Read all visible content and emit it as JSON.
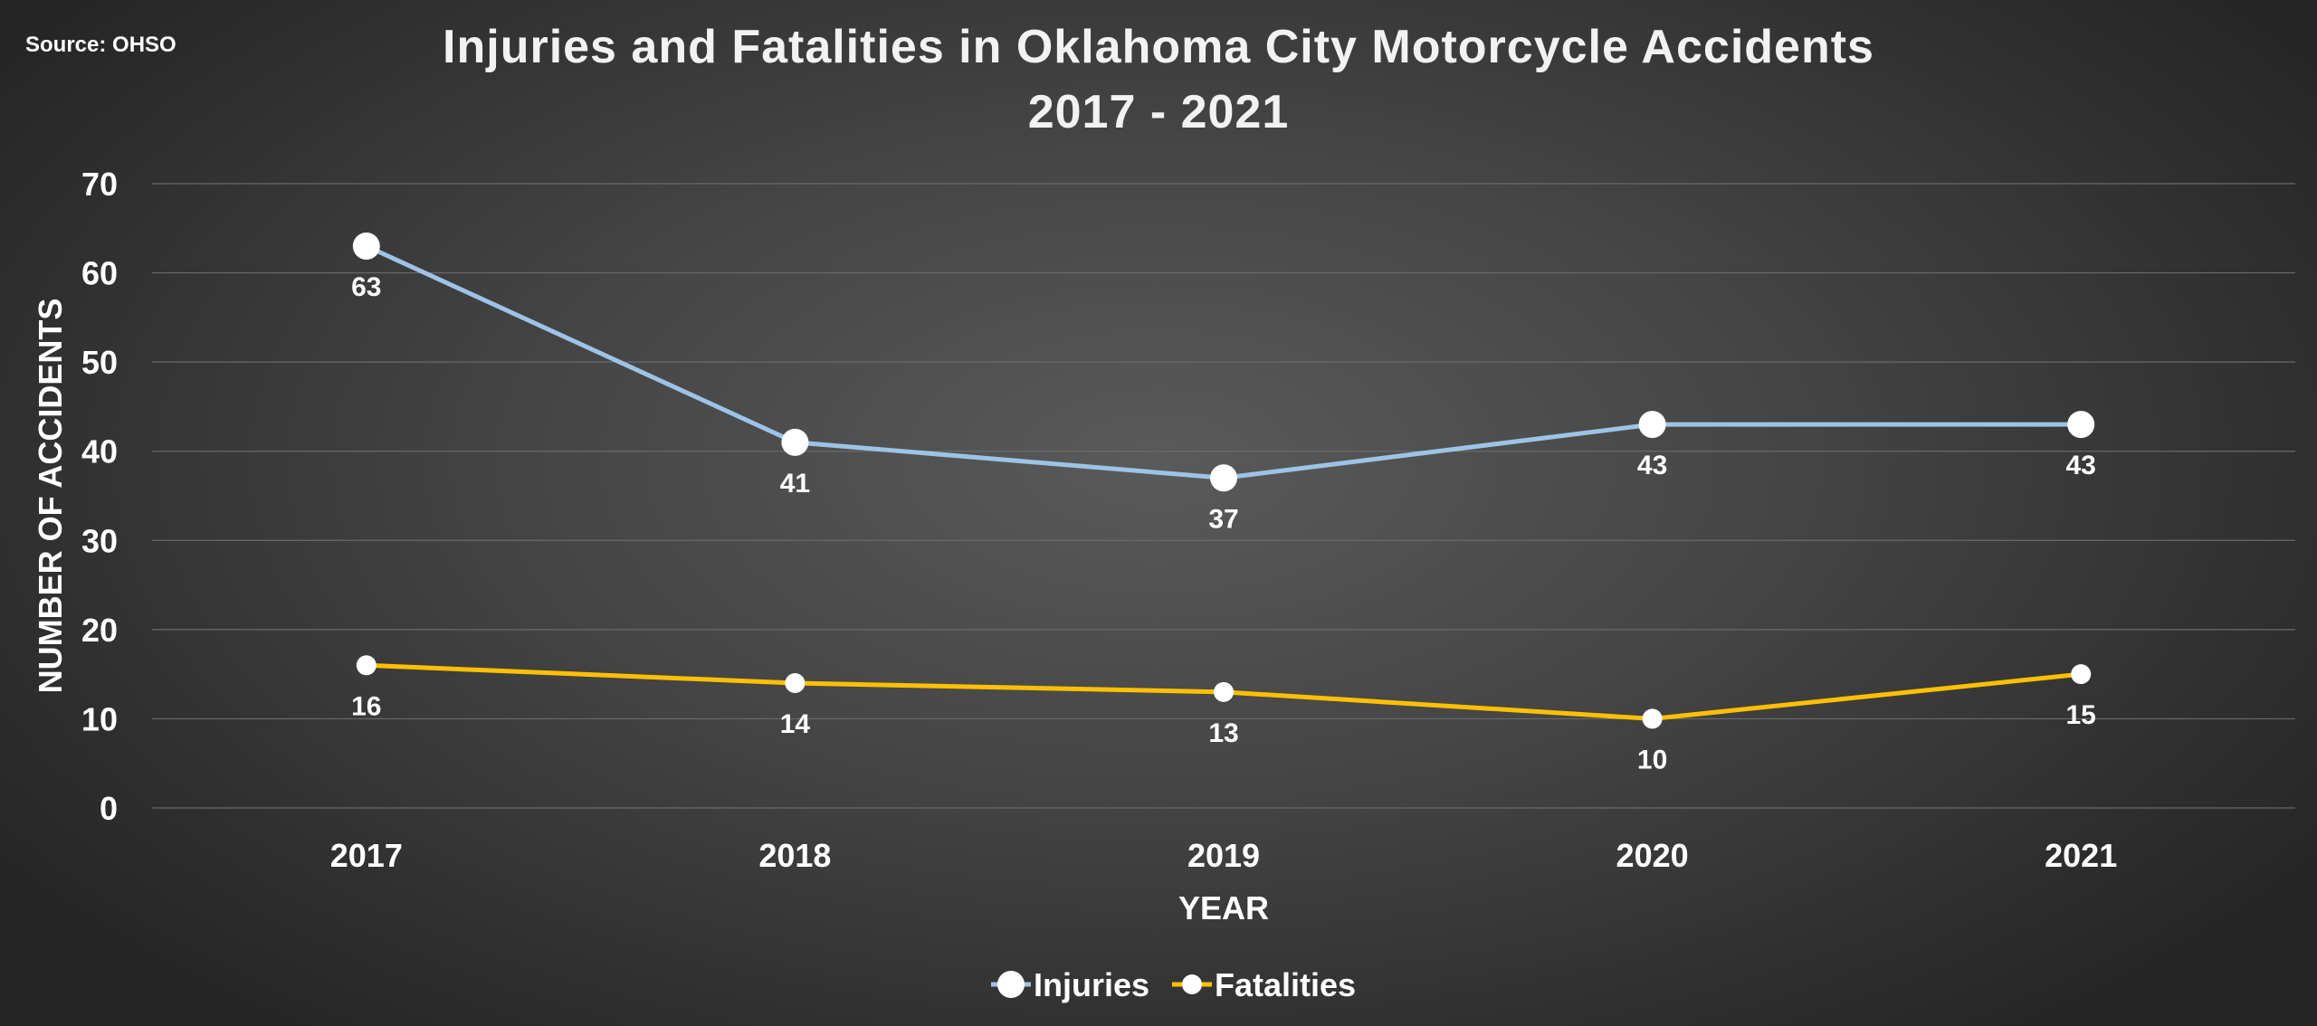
{
  "source_note": "Source: OHSO",
  "chart_data": {
    "type": "line",
    "title": "Injuries and Fatalities in Oklahoma City Motorcycle Accidents",
    "subtitle": "2017 - 2021",
    "xlabel": "YEAR",
    "ylabel": "NUMBER OF ACCIDENTS",
    "categories": [
      "2017",
      "2018",
      "2019",
      "2020",
      "2021"
    ],
    "ylim": [
      0,
      70
    ],
    "yticks": [
      0,
      10,
      20,
      30,
      40,
      50,
      60,
      70
    ],
    "grid": true,
    "legend_position": "bottom",
    "series": [
      {
        "name": "Injuries",
        "values": [
          63,
          41,
          37,
          43,
          43
        ],
        "color": "#9dc3e6",
        "marker_color": "#ffffff"
      },
      {
        "name": "Fatalities",
        "values": [
          16,
          14,
          13,
          10,
          15
        ],
        "color": "#ffc000",
        "marker_color": "#ffffff"
      }
    ]
  }
}
